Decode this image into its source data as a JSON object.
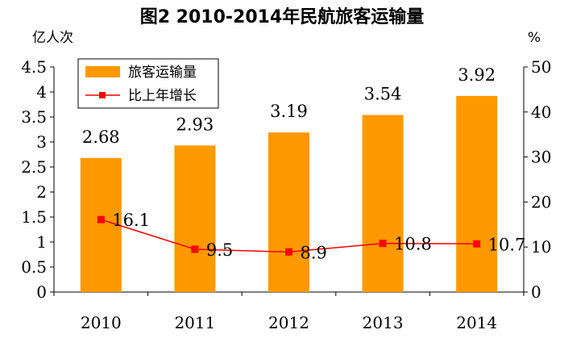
{
  "chart_data": {
    "type": "bar",
    "title": "图2 2010-2014年民航旅客运输量",
    "categories": [
      "2010",
      "2011",
      "2012",
      "2013",
      "2014"
    ],
    "left_axis": {
      "unit_label": "亿人次",
      "ylim": [
        0,
        4.5
      ],
      "ticks": [
        "0",
        "0.5",
        "1",
        "1.5",
        "2",
        "2.5",
        "3",
        "3.5",
        "4",
        "4.5"
      ]
    },
    "right_axis": {
      "unit_label": "%",
      "ylim": [
        0,
        50
      ],
      "ticks": [
        "0",
        "10",
        "20",
        "30",
        "40",
        "50"
      ]
    },
    "series": [
      {
        "name": "旅客运输量",
        "type": "bar",
        "axis": "left",
        "values": [
          2.68,
          2.93,
          3.19,
          3.54,
          3.92
        ],
        "labels": [
          "2.68",
          "2.93",
          "3.19",
          "3.54",
          "3.92"
        ],
        "color": "#FF9900"
      },
      {
        "name": "比上年增长",
        "type": "line",
        "axis": "right",
        "values": [
          16.1,
          9.5,
          8.9,
          10.8,
          10.7
        ],
        "labels": [
          "16.1",
          "9.5",
          "8.9",
          "10.8",
          "10.7"
        ],
        "color": "#FF0000"
      }
    ],
    "legend_position": "top-left",
    "grid": false
  }
}
